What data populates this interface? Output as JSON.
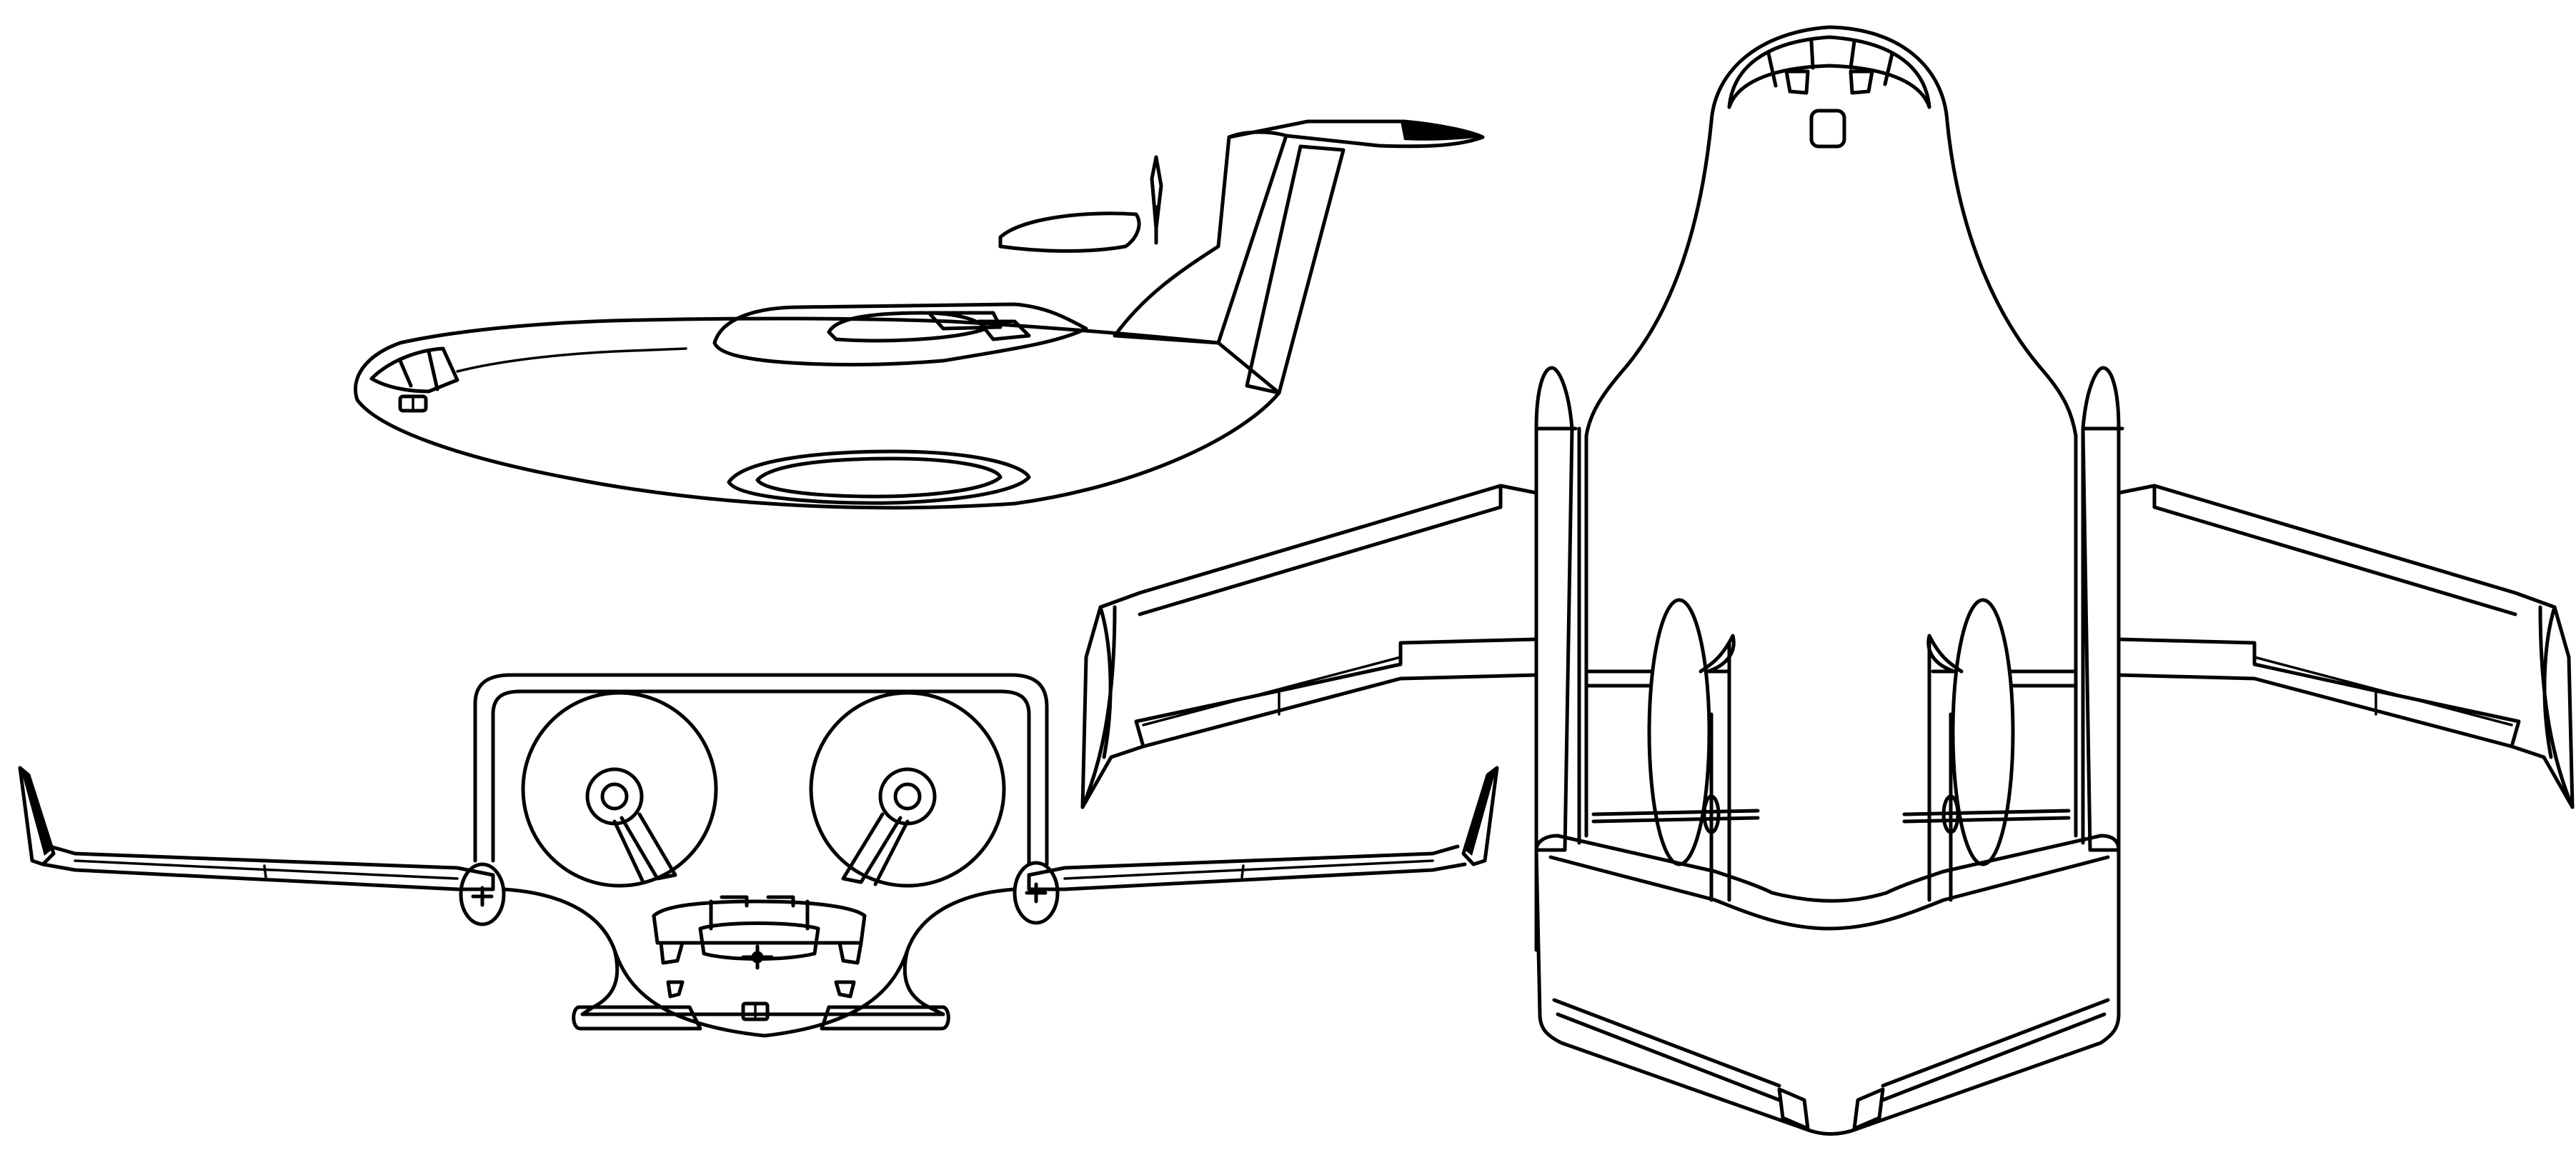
{
  "figure": {
    "views": [
      {
        "id": "perspective",
        "name": "side-perspective-view"
      },
      {
        "id": "front",
        "name": "front-view"
      },
      {
        "id": "plan",
        "name": "plan-view"
      }
    ],
    "colors": {
      "line": "#000000",
      "background": "#ffffff"
    }
  }
}
